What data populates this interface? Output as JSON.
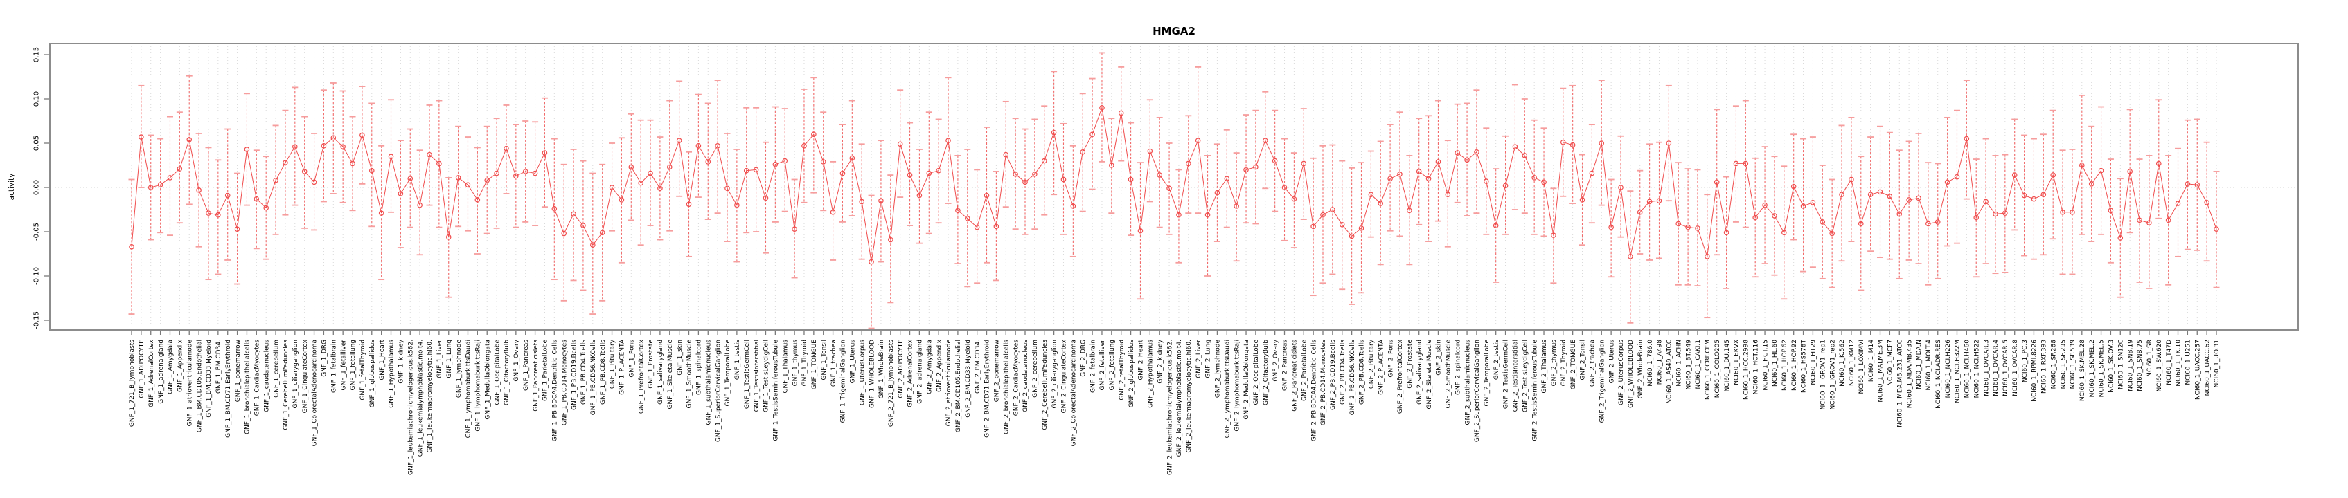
{
  "chart": {
    "title": "HMGA2",
    "ylabel": "activity"
  },
  "chart_data": {
    "type": "line",
    "title": "HMGA2",
    "xlabel": "",
    "ylabel": "activity",
    "ylim": [
      -0.168,
      0.178
    ],
    "yticks": [
      -0.15,
      -0.1,
      -0.05,
      0.0,
      0.05,
      0.1,
      0.15
    ],
    "grid": "dotted vertical gridline per category; dotted horizontal line at y=0",
    "legend_position": "none",
    "marker": "open-circle",
    "error_bars": true,
    "colors": {
      "series_line": "#f04c4c",
      "error_stem": "#f26a6a",
      "whisker_cap": "#f69d9d",
      "marker_stroke": "#f04c4c",
      "gridline": "#d9d9d9",
      "zero_line": "#d4d4d4",
      "axis_box": "#8c8c8c",
      "tick": "#7a7a7a",
      "text": "#000000"
    },
    "categories": [
      "GNF_1_721_B_lymphoblasts",
      "GNF_1_ADIPOCYTE",
      "GNF_1_AdrenalCortex",
      "GNF_1_adrenalgland",
      "GNF_1_Amygdala",
      "GNF_1_Appendix",
      "GNF_1_atrioventricularnode",
      "GNF_1_BM.CD105.Endothelial",
      "GNF_1_BM.CD33.Myeloid",
      "GNF_1_BM.CD34.",
      "GNF_1_BM.CD71.EarlyErythroid",
      "GNF_1_bonemarrow",
      "GNF_1_bronchialepithelialcells",
      "GNF_1_CardiacMyocytes",
      "GNF_1_caudatenucleus",
      "GNF_1_cerebellum",
      "GNF_1_CerebellumPeduncles",
      "GNF_1_ciliaryganglion",
      "GNF_1_CingulateCortex",
      "GNF_1_ColorectalAdenocarcinoma",
      "GNF_1_DRG",
      "GNF_1_fetalbrain",
      "GNF_1_fetalliver",
      "GNF_1_fetallung",
      "GNF_1_fetalThyroid",
      "GNF_1_globuspallidus",
      "GNF_1_Heart",
      "GNF_1_Hypothalamus",
      "GNF_1_kidney",
      "GNF_1_leukemiachronicmyelogenous.k562.",
      "GNF_1_leukemialymphoblastic.molt4.",
      "GNF_1_leukemiapromyelocytic.hl60.",
      "GNF_1_Liver",
      "GNF_1_Lung",
      "GNF_1_lymphnode",
      "GNF_1_lymphomaburkittsDaudi",
      "GNF_1_lymphomaburkittsRaji",
      "GNF_1_MedullaOblongata",
      "GNF_1_OccipitalLobe",
      "GNF_1_OlfactoryBulb",
      "GNF_1_Ovary",
      "GNF_1_Pancreas",
      "GNF_1_Pancreaticislets",
      "GNF_1_ParietalLobe",
      "GNF_1_PB.BDCA4.Dentritic_Cells",
      "GNF_1_PB.CD14.Monocytes",
      "GNF_1_PB.CD19.Bcells",
      "GNF_1_PB.CD4.Tcells",
      "GNF_1_PB.CD56.NKCells",
      "GNF_1_PB.CD8.Tcells",
      "GNF_1_Pituitary",
      "GNF_1_PLACENTA",
      "GNF_1_Pons",
      "GNF_1_PrefrontalCortex",
      "GNF_1_Prostate",
      "GNF_1_salivarygland",
      "GNF_1_SkeletalMuscle",
      "GNF_1_skin",
      "GNF_1_SmoothMuscle",
      "GNF_1_spinalcord",
      "GNF_1_subthalamicnucleus",
      "GNF_1_SuperiorCervicalGanglion",
      "GNF_1_TemporalLobe",
      "GNF_1_testis",
      "GNF_1_TestisGermCell",
      "GNF_1_TestisInterstitial",
      "GNF_1_TestisLeydigCell",
      "GNF_1_TestisSeminiferousTubule",
      "GNF_1_Thalamus",
      "GNF_1_thymus",
      "GNF_1_Thyroid",
      "GNF_1_TONGUE",
      "GNF_1_Tonsil",
      "GNF_1_trachea",
      "GNF_1_TrigeminalGanglion",
      "GNF_1_Uterus",
      "GNF_1_UterusCorpus",
      "GNF_1_WHOLEBLOOD",
      "GNF_1_WholeBrain",
      "GNF_2_721_B_lymphoblasts",
      "GNF_2_ADIPOCYTE",
      "GNF_2_AdrenalCortex",
      "GNF_2_adrenalgland",
      "GNF_2_Amygdala",
      "GNF_2_Appendix",
      "GNF_2_atrioventricularnode",
      "GNF_2_BM.CD105.Endothelial",
      "GNF_2_BM.CD33.Myeloid",
      "GNF_2_BM.CD34.",
      "GNF_2_BM.CD71.EarlyErythroid",
      "GNF_2_bonemarrow",
      "GNF_2_bronchialepithelialcells",
      "GNF_2_CardiacMyocytes",
      "GNF_2_caudatenucleus",
      "GNF_2_cerebellum",
      "GNF_2_CerebellumPeduncles",
      "GNF_2_ciliaryganglion",
      "GNF_2_CingulateCortex",
      "GNF_2_ColorectalAdenocarcinoma",
      "GNF_2_DRG",
      "GNF_2_fetalbrain",
      "GNF_2_fetalliver",
      "GNF_2_fetallung",
      "GNF_2_fetalThyroid",
      "GNF_2_globuspallidus",
      "GNF_2_Heart",
      "GNF_2_Hypothalamus",
      "GNF_2_kidney",
      "GNF_2_leukemiachronicmyelogenous.k562.",
      "GNF_2_leukemialymphoblastic.molt4.",
      "GNF_2_leukemiapromyelocytic.hl60.",
      "GNF_2_Liver",
      "GNF_2_Lung",
      "GNF_2_lymphnode",
      "GNF_2_lymphomaburkittsDaudi",
      "GNF_2_lymphomaburkittsRaji",
      "GNF_2_MedullaOblongata",
      "GNF_2_OccipitalLobe",
      "GNF_2_OlfactoryBulb",
      "GNF_2_Ovary",
      "GNF_2_Pancreas",
      "GNF_2_Pancreaticislets",
      "GNF_2_ParietalLobe",
      "GNF_2_PB.BDCA4.Dentritic_Cells",
      "GNF_2_PB.CD14.Monocytes",
      "GNF_2_PB.CD19.Bcells",
      "GNF_2_PB.CD4.Tcells",
      "GNF_2_PB.CD56.NKCells",
      "GNF_2_PB.CD8.Tcells",
      "GNF_2_Pituitary",
      "GNF_2_PLACENTA",
      "GNF_2_Pons",
      "GNF_2_PrefrontalCortex",
      "GNF_2_Prostate",
      "GNF_2_salivarygland",
      "GNF_2_SkeletalMuscle",
      "GNF_2_skin",
      "GNF_2_SmoothMuscle",
      "GNF_2_spinalcord",
      "GNF_2_subthalamicnucleus",
      "GNF_2_SuperiorCervicalGanglion",
      "GNF_2_TemporalLobe",
      "GNF_2_testis",
      "GNF_2_TestisGermCell",
      "GNF_2_TestisInterstitial",
      "GNF_2_TestisLeydigCell",
      "GNF_2_TestisSeminiferousTubule",
      "GNF_2_Thalamus",
      "GNF_2_thymus",
      "GNF_2_Thyroid",
      "GNF_2_TONGUE",
      "GNF_2_Tonsil",
      "GNF_2_trachea",
      "GNF_2_TrigeminalGanglion",
      "GNF_2_Uterus",
      "GNF_2_UterusCorpus",
      "GNF_2_WHOLEBLOOD",
      "GNF_2_WholeBrain",
      "NCI60_1_786.0",
      "NCI60_1_A498",
      "NCI60_1_A549_ATCC",
      "NCI60_1_ACHN",
      "NCI60_1_BT.549",
      "NCI60_1_CAKI.1",
      "NCI60_1_CCRF.CEM",
      "NCI60_1_COLO205",
      "NCI60_1_DU.145",
      "NCI60_1_EKVX",
      "NCI60_1_HCC.2998",
      "NCI60_1_HCT.116",
      "NCI60_1_HCT.15",
      "NCI60_1_HL.60",
      "NCI60_1_HOP.62",
      "NCI60_1_HOP.92",
      "NCI60_1_HS578T",
      "NCI60_1_HT29",
      "NCI60_1_IGROV1_rep1",
      "NCI60_1_IGROV1_rep2",
      "NCI60_1_K.562",
      "NCI60_1_KM12",
      "NCI60_1_LOXIMVI",
      "NCI60_1_M14",
      "NCI60_1_MALME.3M",
      "NCI60_1_MCF7",
      "NCI60_1_MDA.MB.231_ATCC",
      "NCI60_1_MDA.MB.435",
      "NCI60_1_MDA.N",
      "NCI60_1_MOLT.4",
      "NCI60_1_NCI.ADR.RES",
      "NCI60_1_NCI.H226",
      "NCI60_1_NCI.H322M",
      "NCI60_1_NCI.H460",
      "NCI60_1_NCI.H522",
      "NCI60_1_OVCAR.3",
      "NCI60_1_OVCAR.4",
      "NCI60_1_OVCAR.5",
      "NCI60_1_OVCAR.8",
      "NCI60_1_PC.3",
      "NCI60_1_RPMI.8226",
      "NCI60_1_RXF.393",
      "NCI60_1_SF.268",
      "NCI60_1_SF.295",
      "NCI60_1_SF.539",
      "NCI60_1_SK.MEL.28",
      "NCI60_1_SK.MEL.2",
      "NCI60_1_SK.MEL.5",
      "NCI60_1_SK.OV.3",
      "NCI60_1_SN12C",
      "NCI60_1_SNB.19",
      "NCI60_1_SNB.75",
      "NCI60_1_SR",
      "NCI60_1_SW.620",
      "NCI60_1_T47D",
      "NCI60_1_TK.10",
      "NCI60_1_U251",
      "NCI60_1_UACC.257",
      "NCI60_1_UACC.62",
      "NCI60_1_UO.31"
    ],
    "values": [
      -0.067,
      0.057,
      0.0,
      0.003,
      0.011,
      0.021,
      0.054,
      -0.003,
      -0.029,
      -0.031,
      -0.009,
      -0.047,
      0.043,
      -0.013,
      -0.023,
      0.008,
      0.028,
      0.046,
      0.018,
      0.006,
      0.047,
      0.056,
      0.046,
      0.027,
      0.059,
      0.019,
      -0.029,
      0.035,
      -0.007,
      0.01,
      -0.02,
      0.037,
      0.027,
      -0.056,
      0.011,
      0.003,
      -0.014,
      0.008,
      0.016,
      0.044,
      0.013,
      0.018,
      0.016,
      0.039,
      -0.024,
      -0.052,
      -0.03,
      -0.043,
      -0.065,
      -0.051,
      0.0,
      -0.014,
      0.023,
      0.005,
      0.016,
      -0.001,
      0.023,
      0.053,
      -0.019,
      0.047,
      0.029,
      0.047,
      -0.001,
      -0.02,
      0.019,
      0.02,
      -0.012,
      0.026,
      0.03,
      -0.047,
      0.047,
      0.06,
      0.029,
      -0.028,
      0.016,
      0.033,
      -0.016,
      -0.084,
      -0.015,
      -0.059,
      0.049,
      0.014,
      -0.009,
      0.016,
      0.019,
      0.053,
      -0.026,
      -0.035,
      -0.045,
      -0.009,
      -0.044,
      0.037,
      0.015,
      0.006,
      0.015,
      0.03,
      0.062,
      0.009,
      -0.021,
      0.04,
      0.06,
      0.09,
      0.025,
      0.084,
      0.009,
      -0.049,
      0.041,
      0.014,
      -0.001,
      -0.031,
      0.027,
      0.053,
      -0.031,
      -0.006,
      0.01,
      -0.021,
      0.02,
      0.023,
      0.053,
      0.03,
      0.0,
      -0.013,
      0.027,
      -0.044,
      -0.031,
      -0.025,
      -0.042,
      -0.055,
      -0.046,
      -0.008,
      -0.018,
      0.01,
      0.015,
      -0.026,
      0.018,
      0.01,
      0.029,
      -0.008,
      0.039,
      0.031,
      0.04,
      0.007,
      -0.043,
      0.002,
      0.046,
      0.036,
      0.011,
      0.006,
      -0.054,
      0.051,
      0.048,
      -0.014,
      0.016,
      0.05,
      -0.045,
      0.0,
      -0.078,
      -0.028,
      -0.016,
      -0.015,
      0.05,
      -0.041,
      -0.045,
      -0.046,
      -0.078,
      0.006,
      -0.051,
      0.027,
      0.027,
      -0.034,
      -0.02,
      -0.032,
      -0.051,
      0.001,
      -0.021,
      -0.017,
      -0.039,
      -0.052,
      -0.008,
      0.009,
      -0.041,
      -0.008,
      -0.005,
      -0.01,
      -0.03,
      -0.014,
      -0.012,
      -0.041,
      -0.039,
      0.006,
      0.012,
      0.055,
      -0.034,
      -0.016,
      -0.03,
      -0.029,
      0.014,
      -0.009,
      -0.013,
      -0.008,
      0.014,
      -0.028,
      -0.028,
      0.025,
      0.004,
      0.019,
      -0.026,
      -0.057,
      0.018,
      -0.037,
      -0.04,
      0.027,
      -0.037,
      -0.018,
      0.004,
      0.003,
      -0.017,
      -0.047
    ],
    "error_low": [
      -0.143,
      0.0,
      -0.059,
      -0.051,
      -0.054,
      -0.04,
      -0.019,
      -0.067,
      -0.104,
      -0.098,
      -0.082,
      -0.109,
      -0.02,
      -0.069,
      -0.081,
      -0.053,
      -0.031,
      -0.02,
      -0.046,
      -0.048,
      -0.016,
      -0.007,
      -0.017,
      -0.026,
      0.004,
      -0.044,
      -0.104,
      -0.028,
      -0.068,
      -0.045,
      -0.076,
      -0.02,
      -0.045,
      -0.124,
      -0.044,
      -0.049,
      -0.075,
      -0.052,
      -0.046,
      -0.007,
      -0.045,
      -0.039,
      -0.043,
      -0.022,
      -0.104,
      -0.128,
      -0.105,
      -0.116,
      -0.143,
      -0.128,
      -0.049,
      -0.085,
      -0.037,
      -0.065,
      -0.043,
      -0.059,
      -0.049,
      -0.01,
      -0.078,
      -0.011,
      -0.036,
      -0.029,
      -0.061,
      -0.084,
      -0.051,
      -0.05,
      -0.074,
      -0.039,
      -0.027,
      -0.102,
      -0.017,
      -0.006,
      -0.026,
      -0.082,
      -0.039,
      -0.032,
      -0.081,
      -0.159,
      -0.084,
      -0.13,
      -0.011,
      -0.043,
      -0.063,
      -0.052,
      -0.04,
      -0.018,
      -0.086,
      -0.112,
      -0.108,
      -0.085,
      -0.105,
      -0.022,
      -0.047,
      -0.053,
      -0.047,
      -0.031,
      -0.008,
      -0.053,
      -0.078,
      -0.027,
      -0.002,
      0.029,
      -0.029,
      0.03,
      -0.054,
      -0.126,
      -0.016,
      -0.045,
      -0.053,
      -0.085,
      -0.029,
      -0.029,
      -0.1,
      -0.061,
      -0.045,
      -0.083,
      -0.04,
      -0.041,
      -0.001,
      -0.027,
      -0.06,
      -0.068,
      -0.036,
      -0.122,
      -0.108,
      -0.098,
      -0.115,
      -0.132,
      -0.119,
      -0.056,
      -0.087,
      -0.049,
      -0.055,
      -0.087,
      -0.042,
      -0.061,
      -0.038,
      -0.067,
      -0.017,
      -0.032,
      -0.029,
      -0.053,
      -0.107,
      -0.053,
      -0.025,
      -0.029,
      -0.053,
      -0.055,
      -0.108,
      -0.01,
      -0.018,
      -0.065,
      -0.04,
      -0.02,
      -0.101,
      -0.056,
      -0.153,
      -0.075,
      -0.082,
      -0.08,
      -0.015,
      -0.11,
      -0.11,
      -0.111,
      -0.147,
      -0.076,
      -0.114,
      -0.039,
      -0.045,
      -0.101,
      -0.086,
      -0.099,
      -0.126,
      -0.059,
      -0.095,
      -0.09,
      -0.103,
      -0.113,
      -0.083,
      -0.061,
      -0.116,
      -0.072,
      -0.079,
      -0.081,
      -0.103,
      -0.082,
      -0.086,
      -0.11,
      -0.103,
      -0.066,
      -0.063,
      -0.013,
      -0.101,
      -0.086,
      -0.097,
      -0.096,
      -0.048,
      -0.077,
      -0.081,
      -0.076,
      -0.058,
      -0.098,
      -0.098,
      -0.053,
      -0.061,
      -0.053,
      -0.085,
      -0.124,
      -0.051,
      -0.107,
      -0.114,
      -0.035,
      -0.11,
      -0.078,
      -0.07,
      -0.071,
      -0.083,
      -0.113
    ],
    "error_high": [
      0.009,
      0.115,
      0.059,
      0.055,
      0.08,
      0.085,
      0.126,
      0.061,
      0.045,
      0.031,
      0.066,
      0.016,
      0.106,
      0.042,
      0.035,
      0.07,
      0.087,
      0.113,
      0.08,
      0.061,
      0.11,
      0.118,
      0.109,
      0.08,
      0.114,
      0.095,
      0.047,
      0.099,
      0.053,
      0.066,
      0.042,
      0.093,
      0.098,
      0.011,
      0.069,
      0.057,
      0.045,
      0.069,
      0.078,
      0.093,
      0.071,
      0.075,
      0.074,
      0.101,
      0.055,
      0.026,
      0.043,
      0.03,
      0.016,
      0.026,
      0.05,
      0.056,
      0.083,
      0.076,
      0.076,
      0.057,
      0.098,
      0.12,
      0.04,
      0.105,
      0.095,
      0.121,
      0.061,
      0.043,
      0.09,
      0.09,
      0.051,
      0.091,
      0.089,
      0.009,
      0.111,
      0.124,
      0.085,
      0.029,
      0.071,
      0.098,
      0.049,
      -0.009,
      0.053,
      0.014,
      0.11,
      0.073,
      0.043,
      0.085,
      0.077,
      0.124,
      0.036,
      0.043,
      0.02,
      0.068,
      0.018,
      0.097,
      0.078,
      0.066,
      0.077,
      0.092,
      0.131,
      0.072,
      0.047,
      0.106,
      0.123,
      0.152,
      0.078,
      0.136,
      0.073,
      0.028,
      0.099,
      0.079,
      0.05,
      0.02,
      0.081,
      0.136,
      0.036,
      0.049,
      0.065,
      0.039,
      0.082,
      0.087,
      0.108,
      0.087,
      0.055,
      0.039,
      0.089,
      0.033,
      0.047,
      0.048,
      0.03,
      0.022,
      0.028,
      0.041,
      0.052,
      0.071,
      0.085,
      0.036,
      0.078,
      0.081,
      0.098,
      0.053,
      0.094,
      0.095,
      0.11,
      0.067,
      0.021,
      0.058,
      0.116,
      0.1,
      0.076,
      0.067,
      -0.001,
      0.112,
      0.115,
      0.037,
      0.071,
      0.121,
      0.009,
      0.058,
      -0.004,
      0.019,
      0.049,
      0.051,
      0.115,
      0.028,
      0.021,
      0.02,
      -0.008,
      0.088,
      0.012,
      0.092,
      0.098,
      0.033,
      0.046,
      0.035,
      0.024,
      0.06,
      0.055,
      0.057,
      0.025,
      0.009,
      0.07,
      0.079,
      0.035,
      0.057,
      0.069,
      0.062,
      0.042,
      0.052,
      0.061,
      0.028,
      0.027,
      0.079,
      0.087,
      0.121,
      0.032,
      0.055,
      0.036,
      0.037,
      0.077,
      0.059,
      0.055,
      0.06,
      0.087,
      0.042,
      0.043,
      0.104,
      0.069,
      0.091,
      0.032,
      0.01,
      0.088,
      0.032,
      0.036,
      0.099,
      0.036,
      0.044,
      0.076,
      0.077,
      0.051,
      0.018
    ]
  }
}
